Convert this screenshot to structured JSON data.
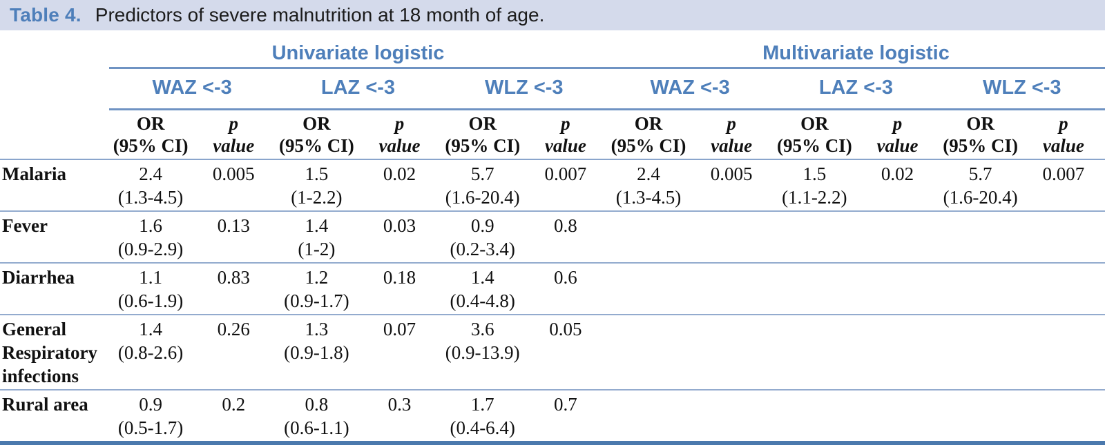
{
  "title": {
    "label": "Table 4.",
    "caption": "Predictors of severe malnutrition at 18 month of age."
  },
  "groups": [
    {
      "label": "Univariate logistic"
    },
    {
      "label": "Multivariate logistic"
    }
  ],
  "subgroups": [
    "WAZ <-3",
    "LAZ <-3",
    "WLZ <-3",
    "WAZ <-3",
    "LAZ <-3",
    "WLZ <-3"
  ],
  "measures": {
    "or_top": "OR",
    "or_bottom": "(95% CI)",
    "p_top": "p",
    "p_bottom": "value"
  },
  "rows": [
    {
      "label": "Malaria",
      "cells": [
        {
          "or": "2.4",
          "ci": "(1.3-4.5)",
          "p": "0.005"
        },
        {
          "or": "1.5",
          "ci": "(1-2.2)",
          "p": "0.02"
        },
        {
          "or": "5.7",
          "ci": "(1.6-20.4)",
          "p": "0.007"
        },
        {
          "or": "2.4",
          "ci": "(1.3-4.5)",
          "p": "0.005"
        },
        {
          "or": "1.5",
          "ci": "(1.1-2.2)",
          "p": "0.02"
        },
        {
          "or": "5.7",
          "ci": "(1.6-20.4)",
          "p": "0.007"
        }
      ]
    },
    {
      "label": "Fever",
      "cells": [
        {
          "or": "1.6",
          "ci": "(0.9-2.9)",
          "p": "0.13"
        },
        {
          "or": "1.4",
          "ci": "(1-2)",
          "p": "0.03"
        },
        {
          "or": "0.9",
          "ci": "(0.2-3.4)",
          "p": "0.8"
        },
        {
          "or": "",
          "ci": "",
          "p": ""
        },
        {
          "or": "",
          "ci": "",
          "p": ""
        },
        {
          "or": "",
          "ci": "",
          "p": ""
        }
      ]
    },
    {
      "label": "Diarrhea",
      "cells": [
        {
          "or": "1.1",
          "ci": "(0.6-1.9)",
          "p": "0.83"
        },
        {
          "or": "1.2",
          "ci": "(0.9-1.7)",
          "p": "0.18"
        },
        {
          "or": "1.4",
          "ci": "(0.4-4.8)",
          "p": "0.6"
        },
        {
          "or": "",
          "ci": "",
          "p": ""
        },
        {
          "or": "",
          "ci": "",
          "p": ""
        },
        {
          "or": "",
          "ci": "",
          "p": ""
        }
      ]
    },
    {
      "label": "General Respiratory infections",
      "cells": [
        {
          "or": "1.4",
          "ci": "(0.8-2.6)",
          "p": "0.26"
        },
        {
          "or": "1.3",
          "ci": "(0.9-1.8)",
          "p": "0.07"
        },
        {
          "or": "3.6",
          "ci": "(0.9-13.9)",
          "p": "0.05"
        },
        {
          "or": "",
          "ci": "",
          "p": ""
        },
        {
          "or": "",
          "ci": "",
          "p": ""
        },
        {
          "or": "",
          "ci": "",
          "p": ""
        }
      ]
    },
    {
      "label": "Rural area",
      "cells": [
        {
          "or": "0.9",
          "ci": "(0.5-1.7)",
          "p": "0.2"
        },
        {
          "or": "0.8",
          "ci": "(0.6-1.1)",
          "p": "0.3"
        },
        {
          "or": "1.7",
          "ci": "(0.4-6.4)",
          "p": "0.7"
        },
        {
          "or": "",
          "ci": "",
          "p": ""
        },
        {
          "or": "",
          "ci": "",
          "p": ""
        },
        {
          "or": "",
          "ci": "",
          "p": ""
        }
      ]
    }
  ],
  "colors": {
    "accent_blue_text": "#4e7fba",
    "header_rule": "#6f93c3",
    "row_rule": "#93abce",
    "bottom_rule": "#4b79ad",
    "caption_bar_bg": "#d4daeb",
    "body_text": "#111111"
  }
}
